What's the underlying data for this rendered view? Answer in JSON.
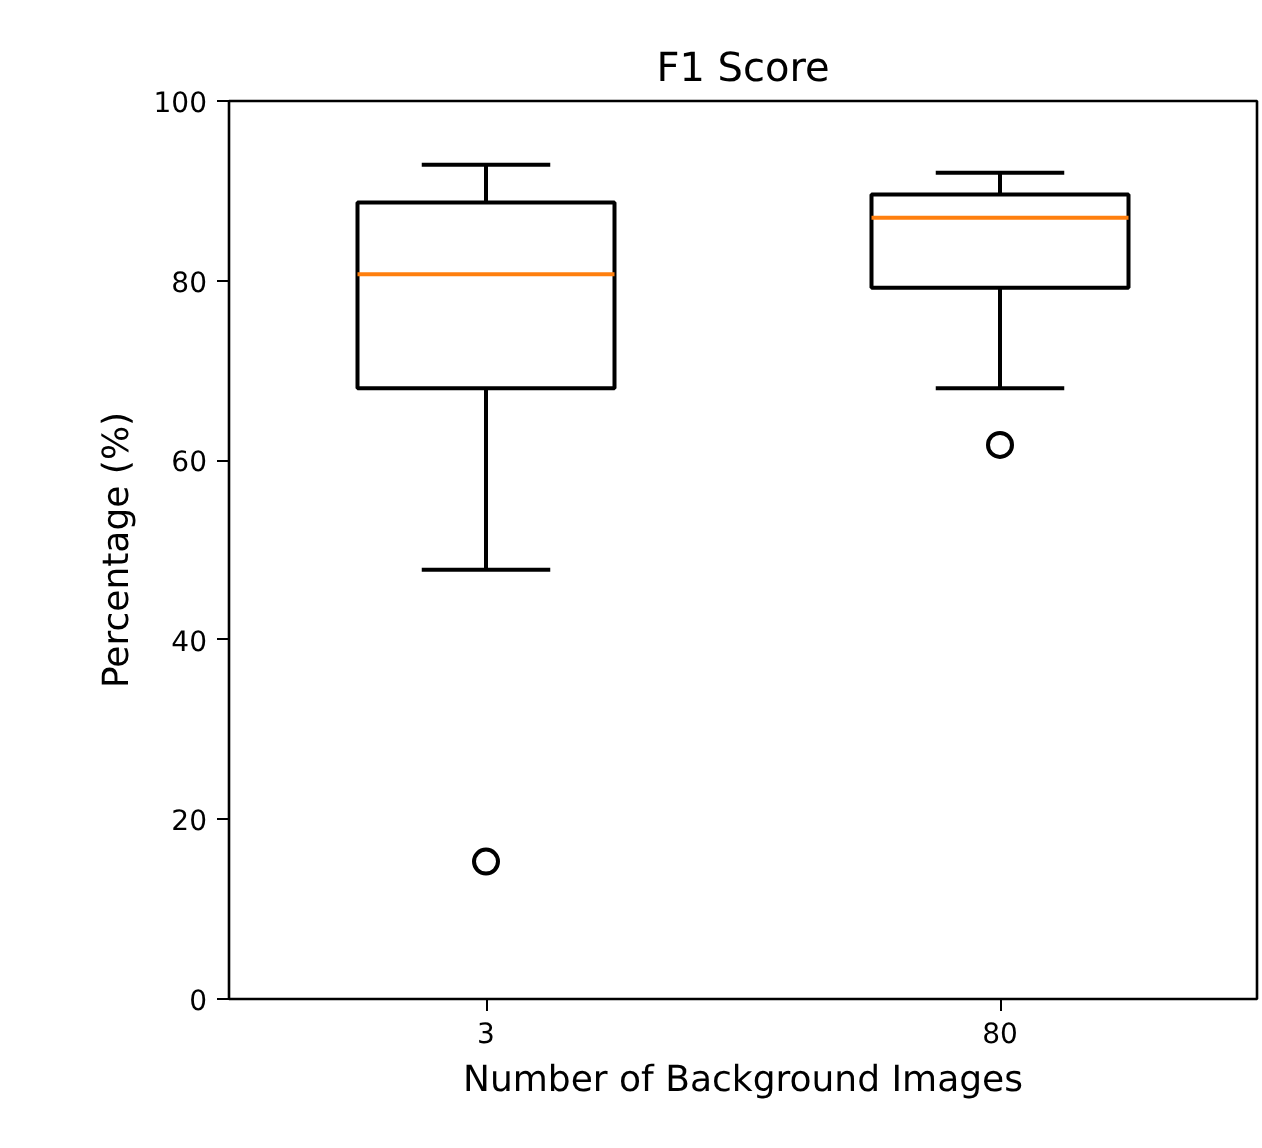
{
  "chart_data": {
    "type": "box",
    "title": "F1 Score",
    "xlabel": "Number of Background Images",
    "ylabel": "Percentage (%)",
    "categories": [
      "3",
      "80"
    ],
    "boxes": [
      {
        "low": 47.8,
        "q1": 68.0,
        "median": 80.7,
        "q3": 88.7,
        "high": 92.9,
        "outliers": [
          15.3
        ]
      },
      {
        "low": 68.0,
        "q1": 79.2,
        "median": 87.0,
        "q3": 89.6,
        "high": 92.0,
        "outliers": [
          61.7
        ]
      }
    ],
    "color": "#000000",
    "ylim": [
      0,
      100
    ],
    "yticks": [
      0,
      20,
      40,
      60,
      80,
      100
    ],
    "grid": false
  }
}
